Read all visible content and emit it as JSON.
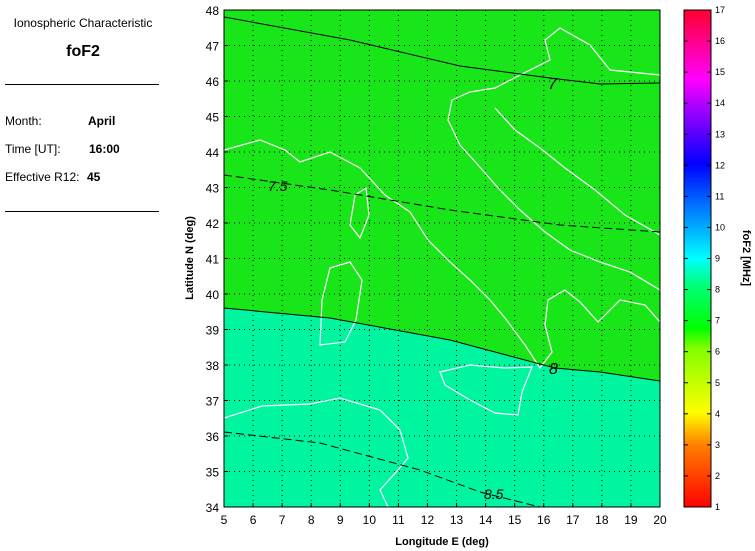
{
  "info": {
    "heading": "Ionospheric Characteristic",
    "characteristic": "foF2",
    "month_label": "Month:",
    "month": "April",
    "time_label": "Time [UT]:",
    "time": "16:00",
    "r12_label": "Effective R12:",
    "r12": "45"
  },
  "map": {
    "xlabel": "Longitude E (deg)",
    "ylabel": "Latitude N (deg)",
    "x_ticks": [
      "5",
      "6",
      "7",
      "8",
      "9",
      "10",
      "11",
      "12",
      "13",
      "14",
      "15",
      "16",
      "17",
      "18",
      "19",
      "20"
    ],
    "y_ticks": [
      "34",
      "35",
      "36",
      "37",
      "38",
      "39",
      "40",
      "41",
      "42",
      "43",
      "44",
      "45",
      "46",
      "47",
      "48"
    ],
    "xlim": [
      5,
      20
    ],
    "ylim": [
      34,
      48
    ],
    "grid": true,
    "contour_labels": [
      "7",
      "7.5",
      "8",
      "8.5"
    ],
    "region_colors": {
      "below_8": "#00f5a0",
      "above_8": "#19e619"
    },
    "coastline_color": "#ffffff"
  },
  "colorbar": {
    "label": "foF2 [MHz]",
    "ticks": [
      "1",
      "2",
      "3",
      "4",
      "5",
      "6",
      "7",
      "8",
      "9",
      "10",
      "11",
      "12",
      "13",
      "14",
      "15",
      "16",
      "17"
    ],
    "range": [
      1,
      17
    ]
  }
}
